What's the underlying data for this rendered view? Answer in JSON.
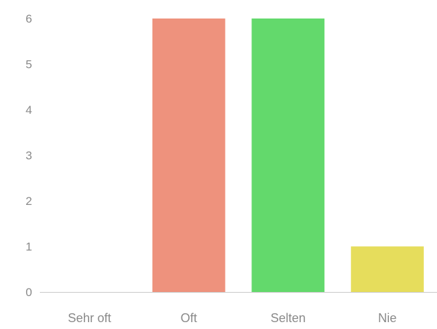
{
  "chart_data": {
    "type": "bar",
    "title": "",
    "xlabel": "",
    "ylabel": "",
    "categories": [
      "Sehr oft",
      "Oft",
      "Selten",
      "Nie"
    ],
    "values": [
      0,
      6,
      6,
      1
    ],
    "colors": [
      "#ffffff",
      "#ee927d",
      "#63d96c",
      "#e6dd5c"
    ],
    "yticks": [
      "0",
      "1",
      "2",
      "3",
      "4",
      "5",
      "6"
    ],
    "ylim": [
      0,
      6
    ],
    "grid": false,
    "legend": "none"
  }
}
